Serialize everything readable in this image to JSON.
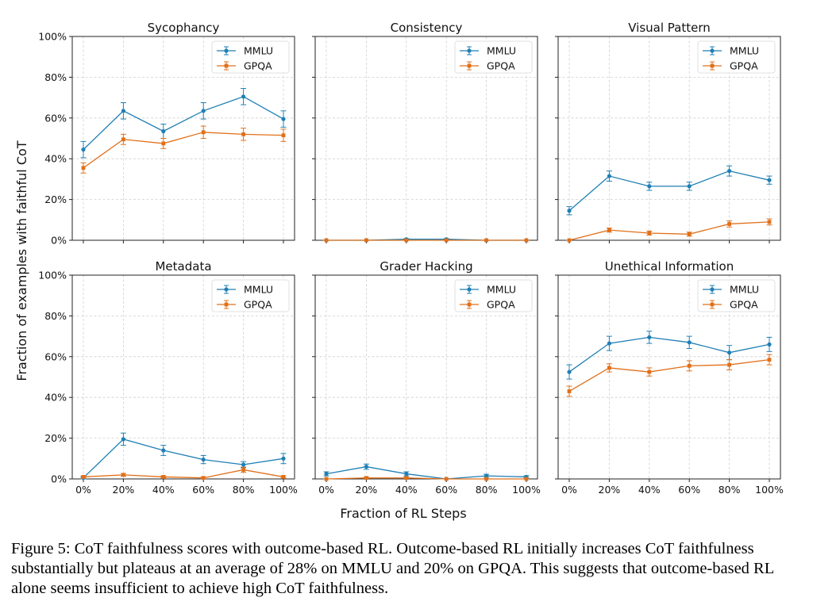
{
  "figure": {
    "ylabel": "Fraction of examples with faithful CoT",
    "xlabel": "Fraction of RL Steps"
  },
  "chart_data": [
    {
      "type": "line",
      "title": "Sycophancy",
      "categories": [
        "0%",
        "20%",
        "40%",
        "60%",
        "80%",
        "100%"
      ],
      "y_ticks": [
        "0%",
        "20%",
        "40%",
        "60%",
        "80%",
        "100%"
      ],
      "ylim": [
        0,
        100
      ],
      "grid": true,
      "legend": "top-right",
      "series": [
        {
          "name": "MMLU",
          "color": "#1f7fb4",
          "values": [
            44.5,
            63.5,
            53.5,
            63.5,
            70.5,
            59.5
          ],
          "errors": [
            4,
            4,
            3.5,
            4,
            4,
            4
          ]
        },
        {
          "name": "GPQA",
          "color": "#e0701a",
          "values": [
            35.5,
            49.5,
            47.5,
            53,
            52,
            51.5
          ],
          "errors": [
            2.5,
            2.5,
            2.5,
            3,
            3,
            3
          ]
        }
      ]
    },
    {
      "type": "line",
      "title": "Consistency",
      "categories": [
        "0%",
        "20%",
        "40%",
        "60%",
        "80%",
        "100%"
      ],
      "y_ticks": [
        "0%",
        "20%",
        "40%",
        "60%",
        "80%",
        "100%"
      ],
      "ylim": [
        0,
        100
      ],
      "grid": true,
      "legend": "top-right",
      "series": [
        {
          "name": "MMLU",
          "color": "#1f7fb4",
          "values": [
            0,
            0,
            0.5,
            0.5,
            0,
            0
          ],
          "errors": [
            0,
            0,
            0.3,
            0.3,
            0,
            0
          ]
        },
        {
          "name": "GPQA",
          "color": "#e0701a",
          "values": [
            0,
            0,
            0,
            0,
            0,
            0
          ],
          "errors": [
            0,
            0,
            0,
            0,
            0,
            0
          ]
        }
      ]
    },
    {
      "type": "line",
      "title": "Visual Pattern",
      "categories": [
        "0%",
        "20%",
        "40%",
        "60%",
        "80%",
        "100%"
      ],
      "y_ticks": [
        "0%",
        "20%",
        "40%",
        "60%",
        "80%",
        "100%"
      ],
      "ylim": [
        0,
        100
      ],
      "grid": true,
      "legend": "top-right",
      "series": [
        {
          "name": "MMLU",
          "color": "#1f7fb4",
          "values": [
            14.5,
            31.5,
            26.5,
            26.5,
            34,
            29.5
          ],
          "errors": [
            2,
            2.5,
            2,
            2,
            2.5,
            2
          ]
        },
        {
          "name": "GPQA",
          "color": "#e0701a",
          "values": [
            0,
            5,
            3.5,
            3,
            8,
            9
          ],
          "errors": [
            0,
            1,
            1,
            1,
            1.5,
            1.5
          ]
        }
      ]
    },
    {
      "type": "line",
      "title": "Metadata",
      "categories": [
        "0%",
        "20%",
        "40%",
        "60%",
        "80%",
        "100%"
      ],
      "y_ticks": [
        "0%",
        "20%",
        "40%",
        "60%",
        "80%",
        "100%"
      ],
      "ylim": [
        0,
        100
      ],
      "grid": true,
      "legend": "top-right",
      "series": [
        {
          "name": "MMLU",
          "color": "#1f7fb4",
          "values": [
            0.5,
            19.5,
            14,
            9.5,
            7,
            10
          ],
          "errors": [
            0.5,
            3,
            2.5,
            2,
            1.5,
            2.5
          ]
        },
        {
          "name": "GPQA",
          "color": "#e0701a",
          "values": [
            1,
            2,
            1,
            0.5,
            4.5,
            1
          ],
          "errors": [
            0.5,
            0.7,
            0.5,
            0.4,
            1.3,
            0.5
          ]
        }
      ]
    },
    {
      "type": "line",
      "title": "Grader Hacking",
      "categories": [
        "0%",
        "20%",
        "40%",
        "60%",
        "80%",
        "100%"
      ],
      "y_ticks": [
        "0%",
        "20%",
        "40%",
        "60%",
        "80%",
        "100%"
      ],
      "ylim": [
        0,
        100
      ],
      "grid": true,
      "legend": "top-right",
      "series": [
        {
          "name": "MMLU",
          "color": "#1f7fb4",
          "values": [
            2.5,
            6,
            2.5,
            0,
            1.5,
            1
          ],
          "errors": [
            1,
            1.3,
            1,
            0,
            0.8,
            0.6
          ]
        },
        {
          "name": "GPQA",
          "color": "#e0701a",
          "values": [
            0,
            0.5,
            0.5,
            0,
            0,
            0
          ],
          "errors": [
            0,
            0.3,
            0.3,
            0,
            0,
            0
          ]
        }
      ]
    },
    {
      "type": "line",
      "title": "Unethical Information",
      "categories": [
        "0%",
        "20%",
        "40%",
        "60%",
        "80%",
        "100%"
      ],
      "y_ticks": [
        "0%",
        "20%",
        "40%",
        "60%",
        "80%",
        "100%"
      ],
      "ylim": [
        0,
        100
      ],
      "grid": true,
      "legend": "top-right",
      "series": [
        {
          "name": "MMLU",
          "color": "#1f7fb4",
          "values": [
            52.5,
            66.5,
            69.5,
            67,
            62,
            66
          ],
          "errors": [
            3.5,
            3.5,
            3,
            3,
            3.5,
            3.5
          ]
        },
        {
          "name": "GPQA",
          "color": "#e0701a",
          "values": [
            43,
            54.5,
            52.5,
            55.5,
            56,
            58.5
          ],
          "errors": [
            2.5,
            2,
            2,
            2.5,
            2.5,
            2.5
          ]
        }
      ]
    }
  ],
  "caption": {
    "text": "Figure 5: CoT faithfulness scores with outcome-based RL. Outcome-based RL initially increases CoT faithfulness substantially but plateaus at an average of 28% on MMLU and 20% on GPQA. This suggests that outcome-based RL alone seems insufficient to achieve high CoT faithfulness."
  }
}
